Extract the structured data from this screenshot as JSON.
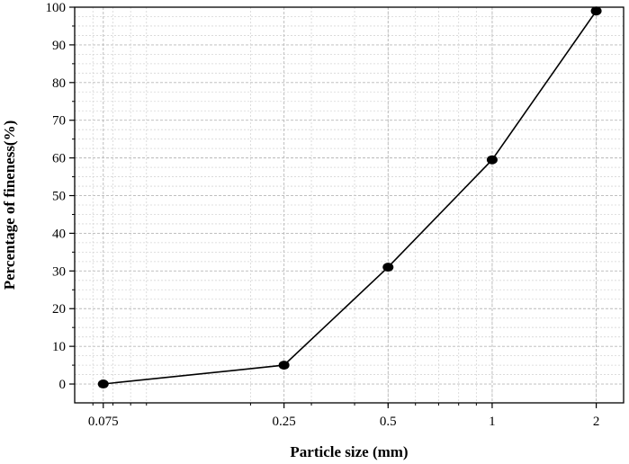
{
  "chart_data": {
    "type": "line",
    "title": "",
    "xlabel": "Particle size (mm)",
    "ylabel": "Percentage of fineness(%)",
    "x_scale": "log",
    "xlim": [
      0.062,
      2.4
    ],
    "ylim": [
      -5,
      100
    ],
    "x_tick_labels": [
      "0.075",
      "0.25",
      "0.5",
      "1",
      "2"
    ],
    "x_tick_values": [
      0.075,
      0.25,
      0.5,
      1,
      2
    ],
    "y_tick_values": [
      0,
      10,
      20,
      30,
      40,
      50,
      60,
      70,
      80,
      90,
      100
    ],
    "y_tick_labels": [
      "0",
      "10",
      "20",
      "30",
      "40",
      "50",
      "60",
      "70",
      "80",
      "90",
      "100"
    ],
    "grid": true,
    "legend": "none",
    "series": [
      {
        "x": [
          0.075,
          0.25,
          0.5,
          1,
          2
        ],
        "y": [
          0,
          5,
          31,
          59.5,
          99
        ],
        "color": "#000000",
        "marker": "circle"
      }
    ]
  }
}
